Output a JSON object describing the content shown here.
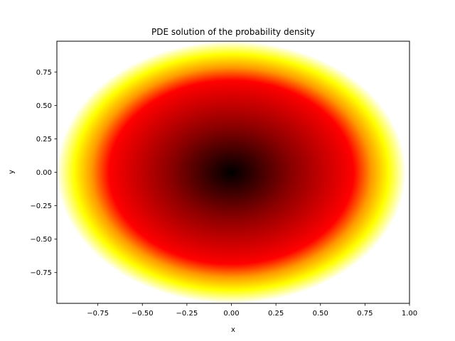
{
  "chart_data": {
    "type": "heatmap",
    "title": "PDE solution of the probability density",
    "xlabel": "x",
    "ylabel": "y",
    "xlim": [
      -0.98,
      1.0
    ],
    "ylim": [
      -0.98,
      0.98
    ],
    "xticks": [
      {
        "value": -0.75,
        "label": "−0.75"
      },
      {
        "value": -0.5,
        "label": "−0.50"
      },
      {
        "value": -0.25,
        "label": "−0.25"
      },
      {
        "value": 0.0,
        "label": "0.00"
      },
      {
        "value": 0.25,
        "label": "0.25"
      },
      {
        "value": 0.5,
        "label": "0.50"
      },
      {
        "value": 0.75,
        "label": "0.75"
      },
      {
        "value": 1.0,
        "label": "1.00"
      }
    ],
    "yticks": [
      {
        "value": 0.75,
        "label": "0.75"
      },
      {
        "value": 0.5,
        "label": "0.50"
      },
      {
        "value": 0.25,
        "label": "0.25"
      },
      {
        "value": 0.0,
        "label": "0.00"
      },
      {
        "value": -0.25,
        "label": "−0.25"
      },
      {
        "value": -0.5,
        "label": "−0.50"
      },
      {
        "value": -0.75,
        "label": "−0.75"
      }
    ],
    "grid": false,
    "colormap": "hot",
    "field": {
      "shape": "disk",
      "center": [
        0.0,
        0.0
      ],
      "radius": 0.98,
      "density_at_center": 0.0,
      "density_at_edge": 1.0,
      "outside_domain": "blank"
    },
    "colors": {
      "low": "#000000",
      "mid_low": "#8b0000",
      "mid": "#ff0000",
      "mid_high": "#ff9900",
      "high": "#ffff00",
      "edge": "#ffffff"
    }
  }
}
